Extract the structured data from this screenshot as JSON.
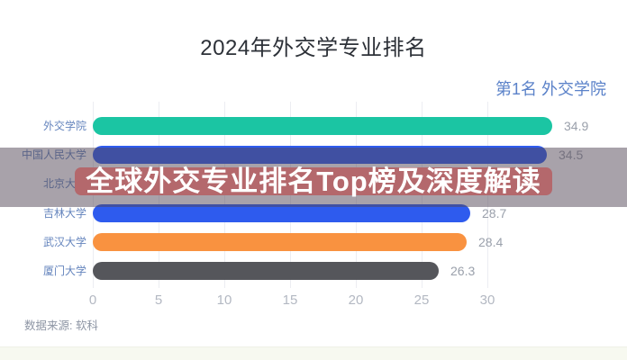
{
  "title": "2024年外交学专业排名",
  "annotation": {
    "text": "第1名 外交学院",
    "color": "#5b82c9"
  },
  "banner": {
    "text": "全球外交专业排名Top榜及深度解读",
    "text_color": "#ffffff",
    "highlight_color": "#b4686c",
    "overlay_color": "rgba(82,70,86,0.5)"
  },
  "source_note": "数据来源: 软科",
  "chart_data": {
    "type": "bar",
    "orientation": "horizontal",
    "title": "2024年外交学专业排名",
    "xlabel": "",
    "ylabel": "",
    "xlim": [
      0,
      36.8
    ],
    "x_ticks": [
      0,
      5,
      10,
      15,
      20,
      25,
      30
    ],
    "grid": "vertical",
    "value_labels_shown": true,
    "categories": [
      "外交学院",
      "中国人民大学",
      "北京大学",
      "吉林大学",
      "武汉大学",
      "厦门大学"
    ],
    "values": [
      34.9,
      34.5,
      null,
      28.7,
      28.4,
      26.3
    ],
    "rows": [
      {
        "label": "外交学院",
        "value": 34.9,
        "value_label": "34.9",
        "color": "#1bc5a3",
        "hidden_by_banner": false
      },
      {
        "label": "中国人民大学",
        "value": 34.5,
        "value_label": "34.5",
        "color": "#2e5bee",
        "hidden_by_banner": false
      },
      {
        "label": "北京大学",
        "value": null,
        "value_label": "",
        "color": null,
        "hidden_by_banner": true
      },
      {
        "label": "吉林大学",
        "value": 28.7,
        "value_label": "28.7",
        "color": "#2e5bee",
        "hidden_by_banner": false
      },
      {
        "label": "武汉大学",
        "value": 28.4,
        "value_label": "28.4",
        "color": "#f99240",
        "hidden_by_banner": false
      },
      {
        "label": "厦门大学",
        "value": 26.3,
        "value_label": "26.3",
        "color": "#55565b",
        "hidden_by_banner": false
      }
    ]
  }
}
